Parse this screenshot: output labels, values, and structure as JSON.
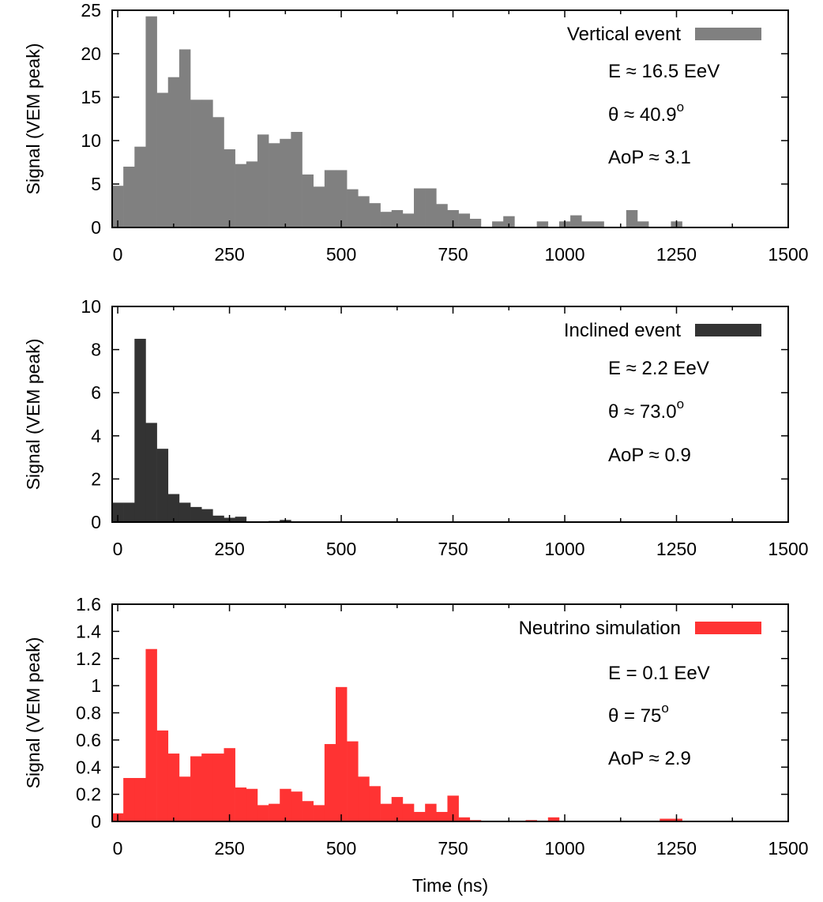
{
  "chart_data": [
    {
      "type": "bar",
      "legend": "Vertical event",
      "legend_position": "top-right",
      "color": "#808080",
      "ylabel": "Signal (VEM peak)",
      "xlabel": "",
      "xlim": [
        -12.5,
        1500
      ],
      "ylim": [
        0,
        25
      ],
      "bin_width": 25,
      "x_start": -12.5,
      "xticks": [
        "0",
        "250",
        "500",
        "750",
        "1000",
        "1250",
        "1500"
      ],
      "yticks": [
        "0",
        "5",
        "10",
        "15",
        "20",
        "25"
      ],
      "ytick_values": [
        0,
        5,
        10,
        15,
        20,
        25
      ],
      "annotations": [
        {
          "text": "E ≈ 16.5 EeV"
        },
        {
          "text": "θ ≈ 40.9",
          "sup": "o"
        },
        {
          "text": "AoP ≈ 3.1"
        }
      ],
      "values": [
        4.8,
        7.0,
        9.3,
        24.3,
        15.5,
        17.3,
        20.5,
        14.7,
        14.7,
        12.7,
        9.0,
        7.3,
        7.6,
        10.7,
        9.7,
        10.2,
        11.0,
        6.1,
        4.7,
        6.6,
        6.6,
        4.4,
        3.6,
        2.8,
        1.8,
        2.0,
        1.6,
        4.5,
        4.5,
        2.7,
        2.0,
        1.6,
        1.0,
        0,
        0.7,
        1.3,
        0,
        0,
        0.7,
        0,
        0.7,
        1.4,
        0.7,
        0.7,
        0,
        0,
        2.0,
        0.7,
        0,
        0,
        0.7,
        0
      ]
    },
    {
      "type": "bar",
      "legend": "Inclined event",
      "legend_position": "top-right",
      "color": "#333333",
      "ylabel": "Signal (VEM peak)",
      "xlabel": "",
      "xlim": [
        -12.5,
        1500
      ],
      "ylim": [
        0,
        10
      ],
      "bin_width": 25,
      "x_start": -12.5,
      "xticks": [
        "0",
        "250",
        "500",
        "750",
        "1000",
        "1250",
        "1500"
      ],
      "yticks": [
        "0",
        "2",
        "4",
        "6",
        "8",
        "10"
      ],
      "ytick_values": [
        0,
        2,
        4,
        6,
        8,
        10
      ],
      "annotations": [
        {
          "text": "E ≈ 2.2 EeV"
        },
        {
          "text": "θ ≈ 73.0",
          "sup": "o"
        },
        {
          "text": "AoP ≈ 0.9"
        }
      ],
      "values": [
        0.9,
        0.9,
        8.5,
        4.6,
        3.4,
        1.3,
        0.9,
        0.7,
        0.6,
        0.3,
        0.2,
        0.25,
        0,
        0,
        0.05,
        0.1,
        0
      ]
    },
    {
      "type": "bar",
      "legend": "Neutrino simulation",
      "legend_position": "top-right",
      "color": "#ff3333",
      "ylabel": "Signal (VEM peak)",
      "xlabel": "Time (ns)",
      "xlim": [
        -12.5,
        1500
      ],
      "ylim": [
        0,
        1.6
      ],
      "bin_width": 25,
      "x_start": -12.5,
      "xticks": [
        "0",
        "250",
        "500",
        "750",
        "1000",
        "1250",
        "1500"
      ],
      "yticks": [
        "0",
        "0.2",
        "0.4",
        "0.6",
        "0.8",
        "1",
        "1.2",
        "1.4",
        "1.6"
      ],
      "ytick_values": [
        0,
        0.2,
        0.4,
        0.6,
        0.8,
        1.0,
        1.2,
        1.4,
        1.6
      ],
      "annotations": [
        {
          "text": "E = 0.1 EeV"
        },
        {
          "text": "θ = 75",
          "sup": "o"
        },
        {
          "text": "AoP ≈ 2.9"
        }
      ],
      "values": [
        0.06,
        0.32,
        0.32,
        1.27,
        0.67,
        0.5,
        0.33,
        0.48,
        0.5,
        0.5,
        0.54,
        0.25,
        0.24,
        0.12,
        0.13,
        0.24,
        0.22,
        0.15,
        0.12,
        0.57,
        0.99,
        0.59,
        0.33,
        0.26,
        0.13,
        0.18,
        0.13,
        0.07,
        0.13,
        0.07,
        0.19,
        0.03,
        0.01,
        0,
        0,
        0,
        0,
        0.01,
        0,
        0.03,
        0,
        0,
        0,
        0,
        0,
        0,
        0,
        0,
        0,
        0.02,
        0.02,
        0
      ]
    }
  ]
}
